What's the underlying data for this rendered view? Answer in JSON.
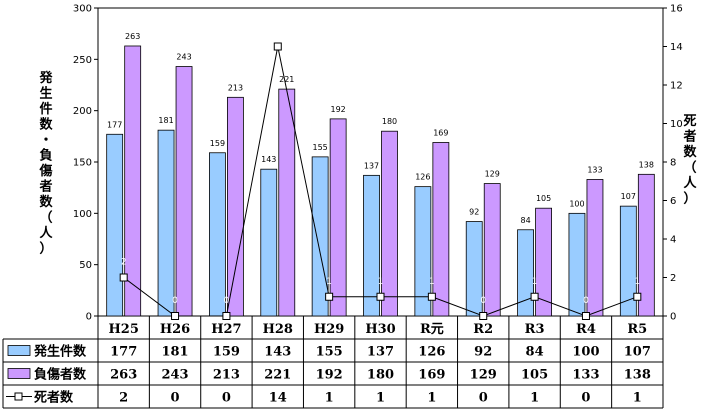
{
  "chart_data": {
    "type": "bar",
    "categories": [
      "H25",
      "H26",
      "H27",
      "H28",
      "H29",
      "H30",
      "R元",
      "R2",
      "R3",
      "R4",
      "R5"
    ],
    "series": [
      {
        "name": "発生件数",
        "kind": "bar",
        "axis": "left",
        "color": "#99ccff",
        "values": [
          177,
          181,
          159,
          143,
          155,
          137,
          126,
          92,
          84,
          100,
          107
        ]
      },
      {
        "name": "負傷者数",
        "kind": "bar",
        "axis": "left",
        "color": "#cc99ff",
        "values": [
          263,
          243,
          213,
          221,
          192,
          180,
          169,
          129,
          105,
          133,
          138
        ]
      },
      {
        "name": "死者数",
        "kind": "line",
        "axis": "right",
        "color": "#000000",
        "values": [
          2,
          0,
          0,
          14,
          1,
          1,
          1,
          0,
          1,
          0,
          1
        ]
      }
    ],
    "y_left": {
      "label": "発生件数・負傷者数（人）",
      "range": [
        0,
        300
      ],
      "ticks": [
        0,
        50,
        100,
        150,
        200,
        250,
        300
      ]
    },
    "y_right": {
      "label": "死者数（人）",
      "range": [
        0,
        16
      ],
      "ticks": [
        0,
        2,
        4,
        6,
        8,
        10,
        12,
        14,
        16
      ]
    },
    "data_table": true,
    "legend": "data-table-left"
  }
}
